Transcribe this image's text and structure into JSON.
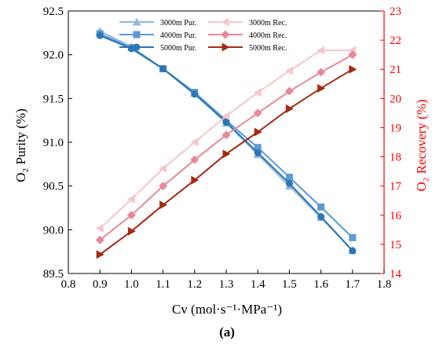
{
  "chart_data": {
    "type": "line",
    "x": [
      0.9,
      1.0,
      1.1,
      1.2,
      1.3,
      1.4,
      1.5,
      1.6,
      1.7
    ],
    "xlim": [
      0.8,
      1.8
    ],
    "xticks": [
      "0.8",
      "0.9",
      "1.0",
      "1.1",
      "1.2",
      "1.3",
      "1.4",
      "1.5",
      "1.6",
      "1.7",
      "1.8"
    ],
    "xlabel": "Cv (mol·s⁻¹·MPa⁻¹)",
    "ylabel_left": "O₂ Purity (%)",
    "ylabel_right": "O₂ Recovery (%)",
    "ylim_left": [
      89.5,
      92.5
    ],
    "yticks_left": [
      "89.5",
      "90.0",
      "90.5",
      "91.0",
      "91.5",
      "92.0",
      "92.5"
    ],
    "ylim_right": [
      14,
      23
    ],
    "yticks_right": [
      "14",
      "15",
      "16",
      "17",
      "18",
      "19",
      "20",
      "21",
      "22",
      "23"
    ],
    "caption": "(a)",
    "grid": false,
    "legend_position": "top-center",
    "series": [
      {
        "name": "3000m Pur.",
        "axis": "left",
        "marker": "triangle-up",
        "color": "#8fb9e1",
        "values": [
          92.27,
          92.09,
          91.84,
          91.56,
          91.22,
          90.86,
          90.5,
          90.14,
          89.76
        ]
      },
      {
        "name": "4000m Pur.",
        "axis": "left",
        "marker": "square",
        "color": "#5b9bd5",
        "values": [
          92.24,
          92.08,
          91.84,
          91.57,
          91.25,
          90.94,
          90.6,
          90.26,
          89.91
        ]
      },
      {
        "name": "5000m Pur.",
        "axis": "left",
        "marker": "circle",
        "color": "#2e75b6",
        "values": [
          92.22,
          92.07,
          91.84,
          91.55,
          91.23,
          90.88,
          90.53,
          90.15,
          89.76
        ]
      },
      {
        "name": "3000m Rec.",
        "axis": "right",
        "marker": "triangle-left",
        "color": "#f4c7cc",
        "values": [
          15.55,
          16.55,
          17.6,
          18.5,
          19.4,
          20.2,
          20.95,
          21.65,
          21.65
        ]
      },
      {
        "name": "4000m Rec.",
        "axis": "right",
        "marker": "diamond",
        "color": "#e8889a",
        "values": [
          15.15,
          16.0,
          17.0,
          17.9,
          18.75,
          19.5,
          20.25,
          20.9,
          21.5
        ]
      },
      {
        "name": "5000m Rec.",
        "axis": "right",
        "marker": "triangle-right",
        "color": "#a62a14",
        "values": [
          14.65,
          15.45,
          16.35,
          17.2,
          18.1,
          18.85,
          19.65,
          20.35,
          21.0
        ]
      }
    ]
  },
  "colors": {
    "left_axis": "#000000",
    "right_axis": "#ff0000"
  }
}
